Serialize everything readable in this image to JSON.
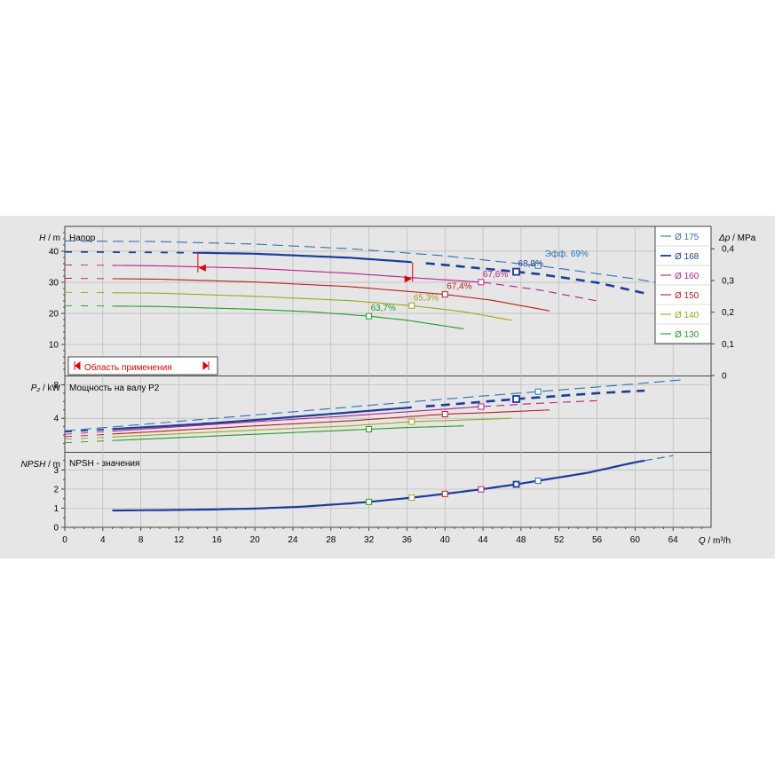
{
  "chart_data": [
    {
      "type": "line",
      "title": "Напор",
      "ylabel_sym": "H",
      "ylabel_unit": "m",
      "y2label_sym": "Δp",
      "y2label_unit": "MPa",
      "ylim": [
        0,
        48
      ],
      "yticks": [
        "10",
        "20",
        "30",
        "40"
      ],
      "y2ticks": [
        "0",
        "0,1",
        "0,2",
        "0,3",
        "0,4"
      ],
      "xlim": [
        0,
        68
      ],
      "application_range": {
        "label": "Область применения",
        "from": 14,
        "to": 36.5
      },
      "efficiency_label": "Эфф. 69%",
      "series": [
        {
          "name": "Ø 175",
          "color": "#2b72b8",
          "dashed_all": true,
          "x": [
            0,
            10,
            20,
            30,
            40,
            50,
            60,
            64
          ],
          "y": [
            43.3,
            43.1,
            42.3,
            40.8,
            38.5,
            35.3,
            31.1,
            29.0
          ],
          "bep_x": 49.8,
          "bep_label": ""
        },
        {
          "name": "Ø 168",
          "color": "#1a3d9c",
          "bold": true,
          "x": [
            0,
            10,
            14,
            20,
            30,
            36.5,
            40,
            47.5,
            50,
            56,
            61
          ],
          "y": [
            39.8,
            39.6,
            39.5,
            39.2,
            37.9,
            36.5,
            35.6,
            33.4,
            32.6,
            29.9,
            26.5
          ],
          "solid_from": 14,
          "solid_to": 36.5,
          "dash_from": 38,
          "bep_x": 47.5,
          "bep_label": "68,8%"
        },
        {
          "name": "Ø 160",
          "color": "#b5208c",
          "x": [
            0,
            10,
            20,
            30,
            36.5,
            44,
            50,
            56
          ],
          "y": [
            35.6,
            35.3,
            34.5,
            32.9,
            31.5,
            30.0,
            27.5,
            24.0
          ],
          "solid_from": 5,
          "solid_to": 44,
          "bep_x": 43.8,
          "bep_label": "67,6%"
        },
        {
          "name": "Ø 150",
          "color": "#b5201c",
          "x": [
            0,
            10,
            20,
            30,
            40,
            45,
            51
          ],
          "y": [
            31.3,
            31.0,
            30.1,
            28.6,
            26.1,
            24.2,
            20.8
          ],
          "solid_from": 5,
          "solid_to": 51,
          "bep_x": 40.0,
          "bep_label": "67,4%"
        },
        {
          "name": "Ø 140",
          "color": "#9aa818",
          "x": [
            0,
            10,
            20,
            30,
            36.5,
            42,
            47
          ],
          "y": [
            26.8,
            26.5,
            25.5,
            24.1,
            22.5,
            20.5,
            17.8
          ],
          "solid_from": 5,
          "solid_to": 47,
          "bep_x": 36.5,
          "bep_label": "65,3%"
        },
        {
          "name": "Ø 130",
          "color": "#1f9e26",
          "x": [
            0,
            10,
            20,
            26,
            32,
            36,
            42
          ],
          "y": [
            22.5,
            22.2,
            21.3,
            20.5,
            19.1,
            17.8,
            15.0
          ],
          "solid_from": 5,
          "solid_to": 42,
          "bep_x": 32.0,
          "bep_label": "63,7%"
        }
      ]
    },
    {
      "type": "line",
      "title": "Мощность на валу P2",
      "ylabel_sym": "P₂",
      "ylabel_unit": "kW",
      "ylim": [
        0,
        9
      ],
      "yticks": [
        "4",
        "8"
      ],
      "series": [
        {
          "name": "Ø 175",
          "color": "#2b72b8",
          "dashed_all": true,
          "x": [
            0,
            20,
            40,
            50,
            60,
            65
          ],
          "y": [
            2.5,
            4.4,
            6.3,
            7.2,
            8.1,
            8.6
          ],
          "bep_x": 49.8
        },
        {
          "name": "Ø 168",
          "color": "#1a3d9c",
          "bold": true,
          "x": [
            0,
            14,
            20,
            36.5,
            40,
            47.5,
            56,
            61
          ],
          "y": [
            2.4,
            3.3,
            3.8,
            5.3,
            5.6,
            6.3,
            7.0,
            7.3
          ],
          "solid_from": 5,
          "solid_to": 36.5,
          "dash_from": 38,
          "bep_x": 47.5
        },
        {
          "name": "Ø 160",
          "color": "#b5208c",
          "x": [
            0,
            20,
            30,
            43.8,
            50,
            56
          ],
          "y": [
            2.1,
            3.6,
            4.3,
            5.4,
            5.8,
            6.1
          ],
          "solid_from": 5,
          "solid_to": 44,
          "bep_x": 43.8
        },
        {
          "name": "Ø 150",
          "color": "#b5201c",
          "x": [
            0,
            20,
            30,
            40,
            45,
            51
          ],
          "y": [
            1.8,
            3.1,
            3.7,
            4.5,
            4.7,
            5.0
          ],
          "solid_from": 5,
          "solid_to": 51,
          "bep_x": 40.0
        },
        {
          "name": "Ø 140",
          "color": "#9aa818",
          "x": [
            0,
            20,
            30,
            36.5,
            42,
            47
          ],
          "y": [
            1.5,
            2.6,
            3.1,
            3.6,
            3.8,
            4.0
          ],
          "solid_from": 5,
          "solid_to": 47,
          "bep_x": 36.5
        },
        {
          "name": "Ø 130",
          "color": "#1f9e26",
          "x": [
            0,
            20,
            26,
            32,
            36,
            42
          ],
          "y": [
            1.1,
            2.1,
            2.4,
            2.7,
            2.9,
            3.1
          ],
          "solid_from": 5,
          "solid_to": 42,
          "bep_x": 32.0
        }
      ]
    },
    {
      "type": "line",
      "title": "NPSH - значения",
      "ylabel_sym": "NPSH",
      "ylabel_unit": "m",
      "ylim": [
        0,
        3.9
      ],
      "yticks": [
        "0",
        "1",
        "2",
        "3"
      ],
      "xlabel_sym": "Q",
      "xlabel_unit": "m³/h",
      "xticks": [
        "0",
        "4",
        "8",
        "12",
        "16",
        "20",
        "24",
        "28",
        "32",
        "36",
        "40",
        "44",
        "48",
        "52",
        "56",
        "60",
        "64"
      ],
      "npsh": {
        "color": "#1a3d9c",
        "x": [
          5,
          10,
          15,
          20,
          25,
          30,
          32,
          36.5,
          40,
          44,
          47.5,
          50,
          55,
          60,
          64
        ],
        "y": [
          0.88,
          0.9,
          0.93,
          0.98,
          1.08,
          1.25,
          1.33,
          1.55,
          1.75,
          2.0,
          2.25,
          2.45,
          2.85,
          3.4,
          3.75
        ],
        "solid_to": 61,
        "markers": [
          {
            "x": 32.0,
            "color": "#1f9e26"
          },
          {
            "x": 36.5,
            "color": "#9aa818"
          },
          {
            "x": 40.0,
            "color": "#b5201c"
          },
          {
            "x": 43.8,
            "color": "#b5208c"
          },
          {
            "x": 47.5,
            "color": "#1a3d9c"
          },
          {
            "x": 49.8,
            "color": "#2b72b8"
          }
        ]
      }
    }
  ]
}
